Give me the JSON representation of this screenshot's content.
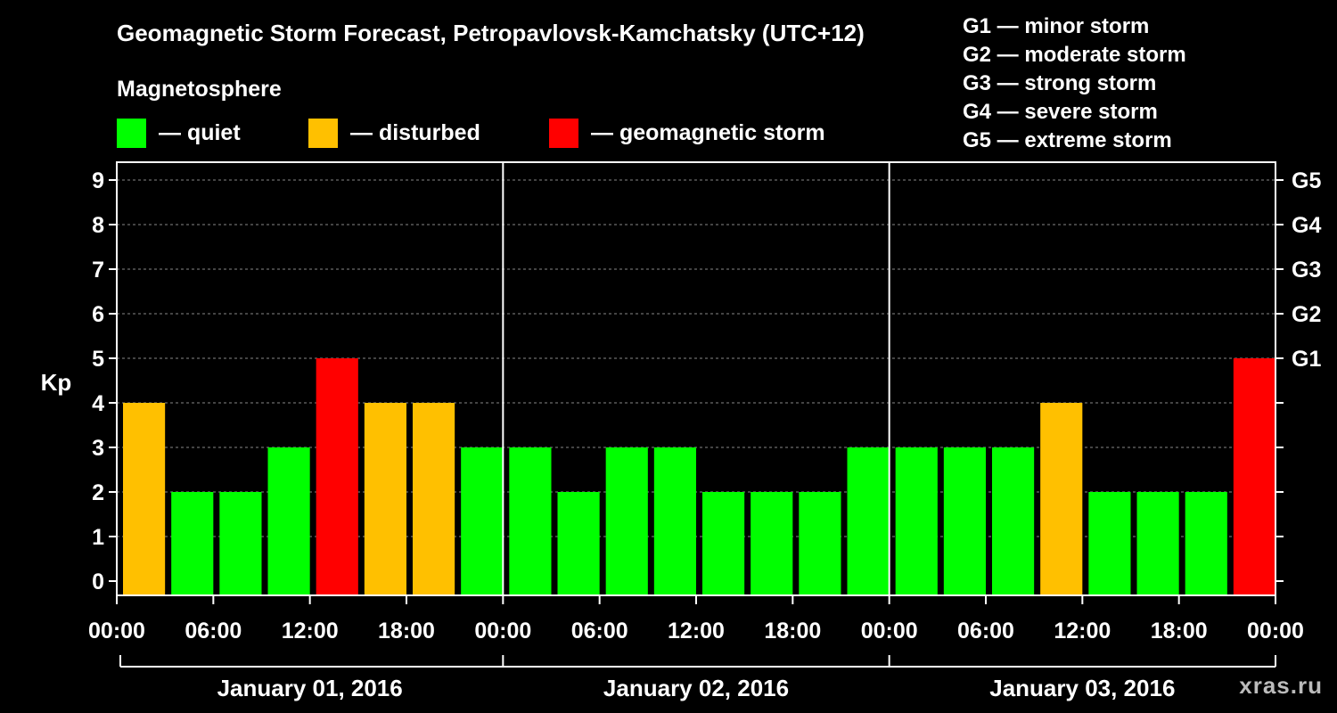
{
  "chart_data": {
    "type": "bar",
    "title": "Geomagnetic Storm Forecast, Petropavlovsk-Kamchatsky (UTC+12)",
    "ylabel": "Kp",
    "ylim": [
      0,
      9
    ],
    "y_ticks": [
      "0",
      "1",
      "2",
      "3",
      "4",
      "5",
      "6",
      "7",
      "8",
      "9"
    ],
    "right_ticks": [
      {
        "kp": 5,
        "label": "G1"
      },
      {
        "kp": 6,
        "label": "G2"
      },
      {
        "kp": 7,
        "label": "G3"
      },
      {
        "kp": 8,
        "label": "G4"
      },
      {
        "kp": 9,
        "label": "G5"
      }
    ],
    "x_tick_labels": [
      "00:00",
      "06:00",
      "12:00",
      "18:00",
      "00:00",
      "06:00",
      "12:00",
      "18:00",
      "00:00",
      "06:00",
      "12:00",
      "18:00",
      "00:00"
    ],
    "days": [
      "January 01, 2016",
      "January 02, 2016",
      "January 03, 2016"
    ],
    "interval_hours": 3,
    "values": [
      4,
      2,
      2,
      3,
      5,
      4,
      4,
      3,
      3,
      2,
      3,
      3,
      2,
      2,
      2,
      3,
      3,
      3,
      3,
      4,
      2,
      2,
      2,
      5
    ],
    "grid": "horizontal dashed",
    "colors": {
      "quiet": "#00ff00",
      "disturbed": "#ffc000",
      "storm": "#ff0000"
    }
  },
  "legend": {
    "title": "Magnetosphere",
    "items": [
      {
        "color": "#00ff00",
        "label": "— quiet"
      },
      {
        "color": "#ffc000",
        "label": "— disturbed"
      },
      {
        "color": "#ff0000",
        "label": "— geomagnetic storm"
      }
    ]
  },
  "storm_levels": [
    "G1 — minor storm",
    "G2 — moderate storm",
    "G3 — strong storm",
    "G4 — severe storm",
    "G5 — extreme storm"
  ],
  "watermark": "xras.ru"
}
